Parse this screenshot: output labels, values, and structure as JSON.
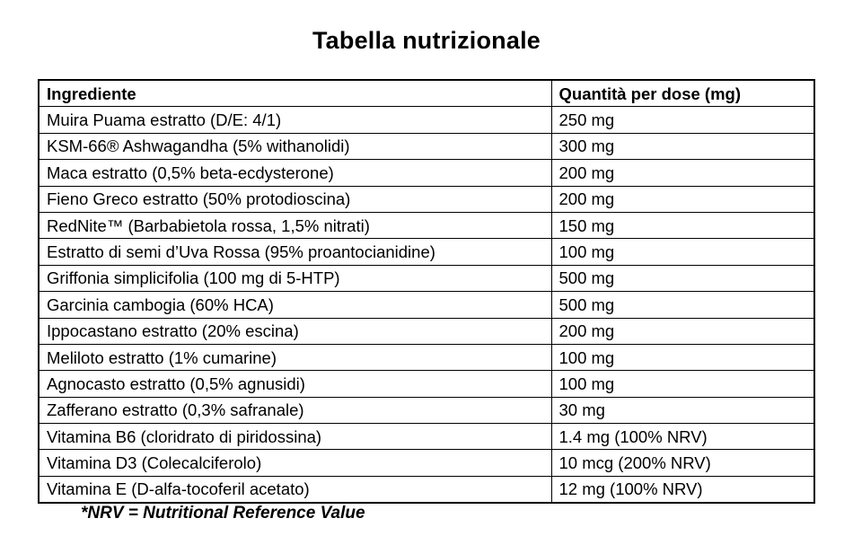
{
  "page": {
    "title": "Tabella nutrizionale",
    "footnote": "*NRV = Nutritional Reference Value"
  },
  "table": {
    "headers": {
      "ingredient": "Ingrediente",
      "quantity": "Quantità per dose (mg)"
    },
    "rows": [
      {
        "ingredient": "Muira Puama estratto (D/E: 4/1)",
        "quantity": "250 mg"
      },
      {
        "ingredient": "KSM-66® Ashwagandha (5% withanolidi)",
        "quantity": "300 mg"
      },
      {
        "ingredient": "Maca estratto (0,5% beta-ecdysterone)",
        "quantity": "200 mg"
      },
      {
        "ingredient": "Fieno Greco estratto (50% protodioscina)",
        "quantity": "200 mg"
      },
      {
        "ingredient": "RedNite™ (Barbabietola rossa, 1,5% nitrati)",
        "quantity": "150 mg"
      },
      {
        "ingredient": "Estratto di semi d’Uva Rossa (95% proantocianidine)",
        "quantity": "100 mg"
      },
      {
        "ingredient": "Griffonia simplicifolia (100 mg di 5-HTP)",
        "quantity": "500 mg"
      },
      {
        "ingredient": "Garcinia cambogia (60% HCA)",
        "quantity": "500 mg"
      },
      {
        "ingredient": "Ippocastano estratto (20% escina)",
        "quantity": "200 mg"
      },
      {
        "ingredient": "Meliloto estratto (1% cumarine)",
        "quantity": "100 mg"
      },
      {
        "ingredient": "Agnocasto estratto (0,5% agnusidi)",
        "quantity": "100 mg"
      },
      {
        "ingredient": "Zafferano estratto (0,3% safranale)",
        "quantity": "30 mg"
      },
      {
        "ingredient": "Vitamina B6 (cloridrato di piridossina)",
        "quantity": "1.4 mg (100% NRV)"
      },
      {
        "ingredient": "Vitamina D3 (Colecalciferolo)",
        "quantity": "10 mcg (200% NRV)"
      },
      {
        "ingredient": "Vitamina E (D-alfa-tocoferil acetato)",
        "quantity": "12 mg (100% NRV)"
      }
    ]
  }
}
